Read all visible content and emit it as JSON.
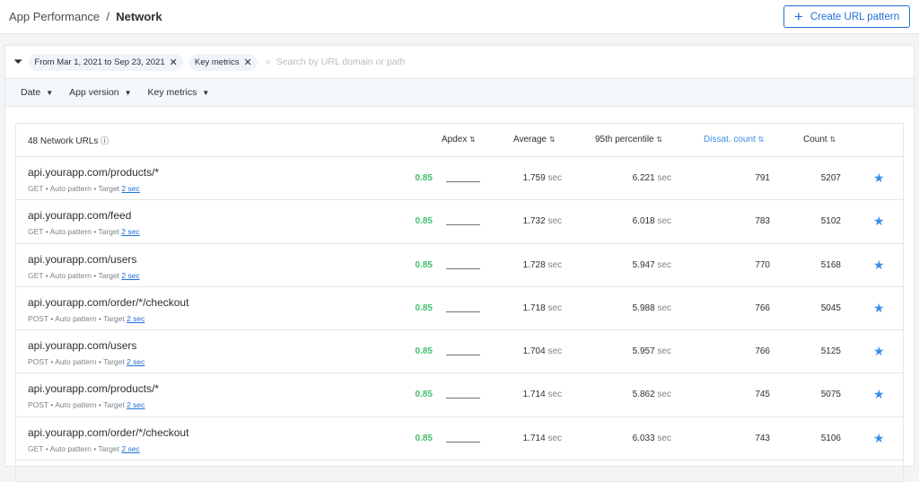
{
  "breadcrumb": {
    "parent": "App Performance",
    "separator": "/",
    "current": "Network"
  },
  "create_button": "Create URL pattern",
  "filters": {
    "chips": [
      "From Mar 1, 2021 to Sep 23, 2021",
      "Key metrics"
    ],
    "search_placeholder": "Search by URL domain or path"
  },
  "dropdowns": [
    "Date",
    "App version",
    "Key metrics"
  ],
  "table": {
    "title": "48 Network URLs",
    "columns": [
      "Apdex",
      "Average",
      "95th percentile",
      "Dissat. count",
      "Count"
    ],
    "active_column_color": "#3b8ee8",
    "unit": "sec",
    "rows": [
      {
        "url": "api.yourapp.com/products/*",
        "method": "GET",
        "pattern": "Auto pattern",
        "target_label": "Target",
        "target": "2 sec",
        "apdex": "0.85",
        "average": "1.759",
        "p95": "6.221",
        "dissat": "791",
        "count": "5207"
      },
      {
        "url": "api.yourapp.com/feed",
        "method": "GET",
        "pattern": "Auto pattern",
        "target_label": "Target",
        "target": "2 sec",
        "apdex": "0.85",
        "average": "1.732",
        "p95": "6.018",
        "dissat": "783",
        "count": "5102"
      },
      {
        "url": "api.yourapp.com/users",
        "method": "GET",
        "pattern": "Auto pattern",
        "target_label": "Target",
        "target": "2 sec",
        "apdex": "0.85",
        "average": "1.728",
        "p95": "5.947",
        "dissat": "770",
        "count": "5168"
      },
      {
        "url": "api.yourapp.com/order/*/checkout",
        "method": "POST",
        "pattern": "Auto pattern",
        "target_label": "Target",
        "target": "2 sec",
        "apdex": "0.85",
        "average": "1.718",
        "p95": "5.988",
        "dissat": "766",
        "count": "5045"
      },
      {
        "url": "api.yourapp.com/users",
        "method": "POST",
        "pattern": "Auto pattern",
        "target_label": "Target",
        "target": "2 sec",
        "apdex": "0.85",
        "average": "1.704",
        "p95": "5.957",
        "dissat": "766",
        "count": "5125"
      },
      {
        "url": "api.yourapp.com/products/*",
        "method": "POST",
        "pattern": "Auto pattern",
        "target_label": "Target",
        "target": "2 sec",
        "apdex": "0.85",
        "average": "1.714",
        "p95": "5.862",
        "dissat": "745",
        "count": "5075"
      },
      {
        "url": "api.yourapp.com/order/*/checkout",
        "method": "GET",
        "pattern": "Auto pattern",
        "target_label": "Target",
        "target": "2 sec",
        "apdex": "0.85",
        "average": "1.714",
        "p95": "6.033",
        "dissat": "743",
        "count": "5106"
      }
    ]
  }
}
